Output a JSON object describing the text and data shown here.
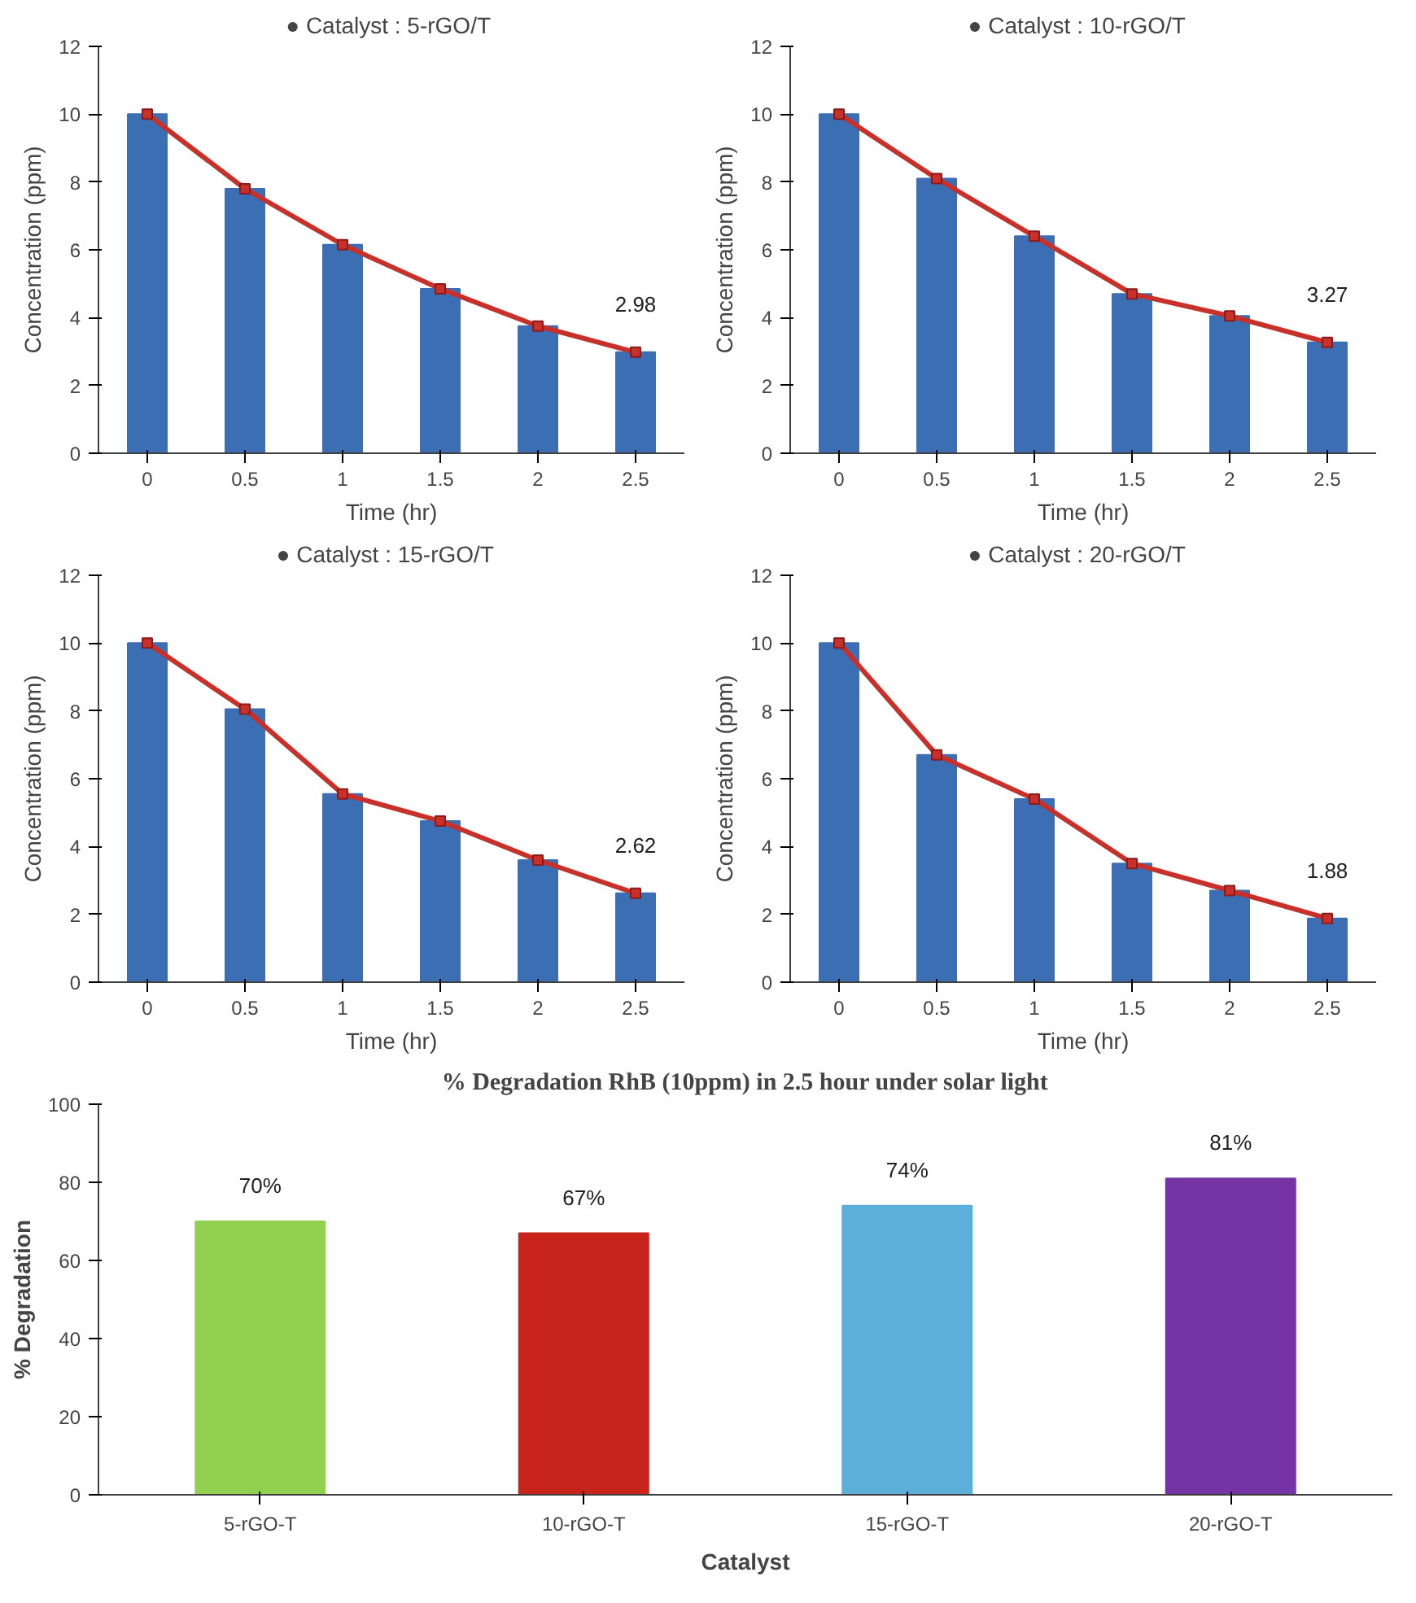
{
  "chart_data": [
    {
      "type": "bar",
      "title": "● Catalyst  : 5-rGO/T",
      "xlabel": "Time (hr)",
      "ylabel": "Concentration (ppm)",
      "categories": [
        "0",
        "0.5",
        "1",
        "1.5",
        "2",
        "2.5"
      ],
      "ylim": [
        0,
        12
      ],
      "yticks": [
        0,
        2,
        4,
        6,
        8,
        10,
        12
      ],
      "grid": false,
      "marker": "square",
      "series": [
        {
          "type": "bar",
          "color": "#3c6eb4",
          "values": [
            10,
            7.8,
            6.15,
            4.85,
            3.75,
            2.98
          ]
        },
        {
          "type": "line",
          "color": "#c8302a",
          "values": [
            10,
            7.8,
            6.15,
            4.85,
            3.75,
            2.98
          ],
          "value_labels": [
            null,
            null,
            null,
            null,
            null,
            "2.98"
          ]
        }
      ]
    },
    {
      "type": "bar",
      "title": "● Catalyst   : 10-rGO/T",
      "xlabel": "Time (hr)",
      "ylabel": "Concentration (ppm)",
      "categories": [
        "0",
        "0.5",
        "1",
        "1.5",
        "2",
        "2.5"
      ],
      "ylim": [
        0,
        12
      ],
      "yticks": [
        0,
        2,
        4,
        6,
        8,
        10,
        12
      ],
      "grid": false,
      "marker": "square",
      "series": [
        {
          "type": "bar",
          "color": "#3c6eb4",
          "values": [
            10,
            8.1,
            6.4,
            4.7,
            4.05,
            3.27
          ]
        },
        {
          "type": "line",
          "color": "#c8302a",
          "values": [
            10,
            8.1,
            6.4,
            4.7,
            4.05,
            3.27
          ],
          "value_labels": [
            null,
            null,
            null,
            null,
            null,
            "3.27"
          ]
        }
      ]
    },
    {
      "type": "bar",
      "title": "● Catalyst   : 15-rGO/T",
      "xlabel": "Time (hr)",
      "ylabel": "Concentration (ppm)",
      "categories": [
        "0",
        "0.5",
        "1",
        "1.5",
        "2",
        "2.5"
      ],
      "ylim": [
        0,
        12
      ],
      "yticks": [
        0,
        2,
        4,
        6,
        8,
        10,
        12
      ],
      "grid": false,
      "marker": "square",
      "series": [
        {
          "type": "bar",
          "color": "#3c6eb4",
          "values": [
            10,
            8.05,
            5.55,
            4.75,
            3.6,
            2.62
          ]
        },
        {
          "type": "line",
          "color": "#c8302a",
          "values": [
            10,
            8.05,
            5.55,
            4.75,
            3.6,
            2.62
          ],
          "value_labels": [
            null,
            null,
            null,
            null,
            null,
            "2.62"
          ]
        }
      ]
    },
    {
      "type": "bar",
      "title": "● Catalyst   : 20-rGO/T",
      "xlabel": "Time (hr)",
      "ylabel": "Concentration (ppm)",
      "categories": [
        "0",
        "0.5",
        "1",
        "1.5",
        "2",
        "2.5"
      ],
      "ylim": [
        0,
        12
      ],
      "yticks": [
        0,
        2,
        4,
        6,
        8,
        10,
        12
      ],
      "grid": false,
      "marker": "square",
      "series": [
        {
          "type": "bar",
          "color": "#3c6eb4",
          "values": [
            10,
            6.7,
            5.4,
            3.5,
            2.7,
            1.88
          ]
        },
        {
          "type": "line",
          "color": "#c8302a",
          "values": [
            10,
            6.7,
            5.4,
            3.5,
            2.7,
            1.88
          ],
          "value_labels": [
            null,
            null,
            null,
            null,
            null,
            "1.88"
          ]
        }
      ]
    },
    {
      "type": "bar",
      "title": "% Degradation RhB (10ppm) in 2.5 hour under solar light",
      "xlabel": "Catalyst",
      "ylabel": "% Degradation",
      "categories": [
        "5-rGO-T",
        "10-rGO-T",
        "15-rGO-T",
        "20-rGO-T"
      ],
      "ylim": [
        0,
        100
      ],
      "yticks": [
        0,
        20,
        40,
        60,
        80,
        100
      ],
      "grid": false,
      "values": [
        70,
        67,
        74,
        81
      ],
      "colors": [
        "#92d050",
        "#c8241c",
        "#5bafd8",
        "#7434a4"
      ],
      "value_labels": [
        "70%",
        "67%",
        "74%",
        "81%"
      ]
    }
  ]
}
